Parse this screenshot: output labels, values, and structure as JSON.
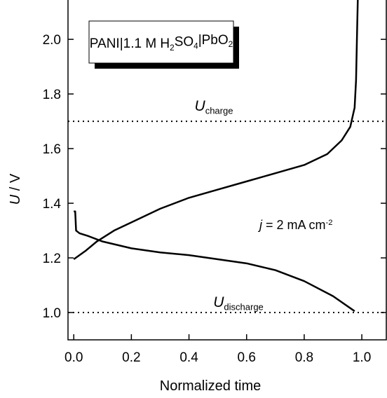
{
  "chart_data": {
    "type": "line",
    "box_label": [
      "PANI|1.1 M H",
      "2",
      "SO",
      "4",
      "|PbO",
      "2"
    ],
    "annotations": [
      {
        "parts": [
          "U",
          "charge"
        ]
      },
      {
        "parts": [
          "U",
          "discharge"
        ]
      },
      {
        "parts": [
          "j",
          " = 2 mA cm",
          "-2"
        ]
      }
    ],
    "x_label": "Normalized time",
    "y_label": [
      "U",
      " / V"
    ],
    "xlim": [
      -0.02,
      1.085
    ],
    "ylim": [
      0.9,
      2.144
    ],
    "xticks": [
      {
        "value": 0,
        "label": "0.0"
      },
      {
        "value": 0.2,
        "label": "0.2"
      },
      {
        "value": 0.4,
        "label": "0.4"
      },
      {
        "value": 0.6,
        "label": "0.6"
      },
      {
        "value": 0.8,
        "label": "0.8"
      },
      {
        "value": 1,
        "label": "1.0"
      }
    ],
    "yticks": [
      {
        "value": 1,
        "label": "1.0"
      },
      {
        "value": 1.2,
        "label": "1.2"
      },
      {
        "value": 1.4,
        "label": "1.4"
      },
      {
        "value": 1.6,
        "label": "1.6"
      },
      {
        "value": 1.8,
        "label": "1.8"
      },
      {
        "value": 2,
        "label": "2.0"
      }
    ],
    "hlines": [
      1.7,
      1.0
    ],
    "series": [
      {
        "color": "#000000",
        "x": [
          0,
          0.04,
          0.08,
          0.14,
          0.2,
          0.3,
          0.4,
          0.5,
          0.6,
          0.7,
          0.8,
          0.88,
          0.93,
          0.96,
          0.975,
          0.98,
          0.983,
          0.986
        ],
        "values": [
          1.195,
          1.225,
          1.26,
          1.3,
          1.33,
          1.38,
          1.42,
          1.45,
          1.48,
          1.51,
          1.54,
          1.58,
          1.63,
          1.68,
          1.75,
          1.85,
          2.0,
          2.144
        ]
      },
      {
        "color": "#000000",
        "x": [
          0,
          0.005,
          0.008,
          0.02,
          0.05,
          0.1,
          0.2,
          0.3,
          0.4,
          0.5,
          0.6,
          0.7,
          0.8,
          0.9,
          0.975
        ],
        "values": [
          1.37,
          1.37,
          1.3,
          1.29,
          1.28,
          1.26,
          1.235,
          1.22,
          1.21,
          1.195,
          1.18,
          1.155,
          1.115,
          1.06,
          1.005
        ]
      }
    ]
  }
}
